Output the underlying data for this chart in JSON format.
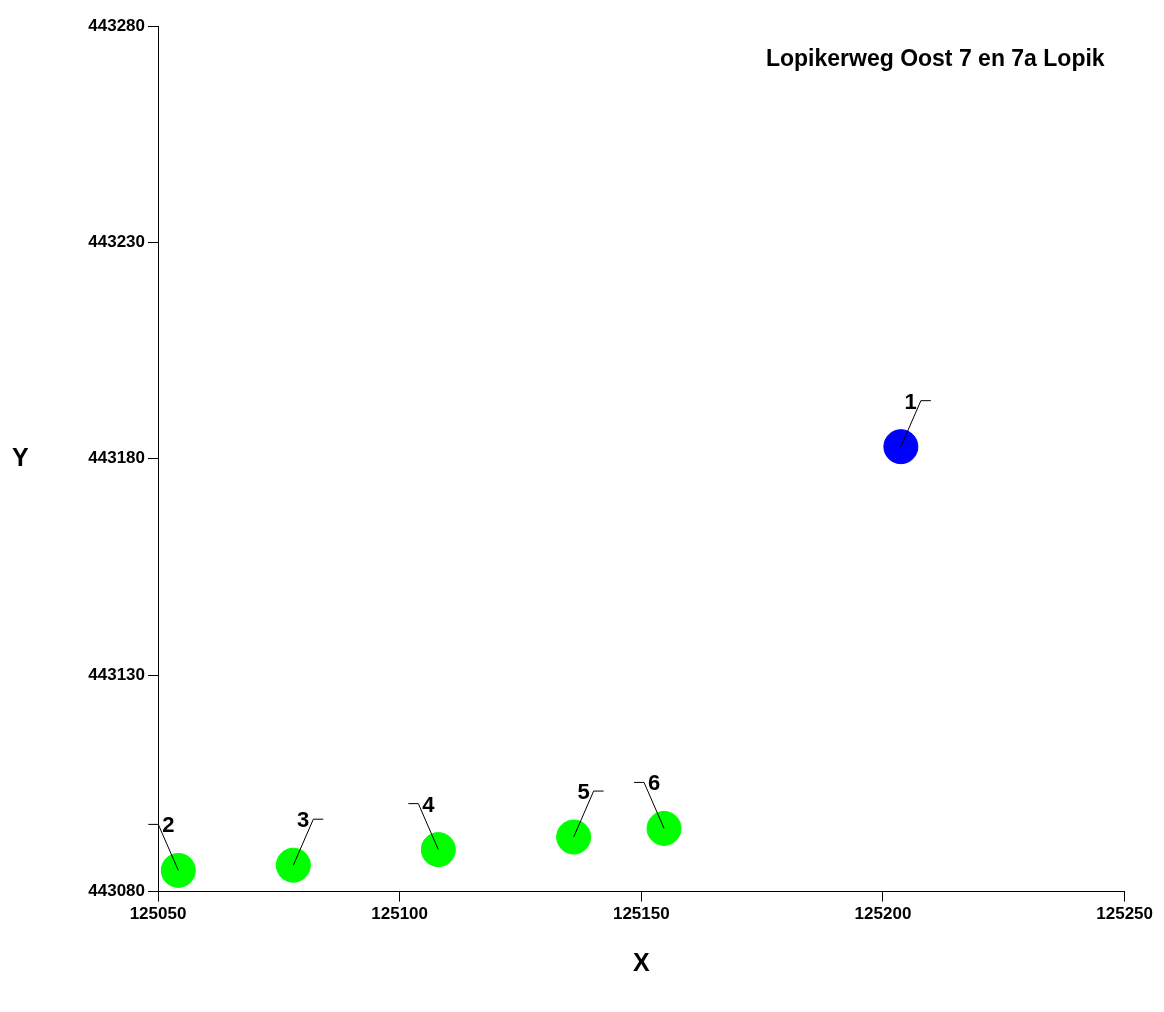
{
  "chart_data": {
    "type": "scatter",
    "title": "Lopikerweg Oost 7 en 7a Lopik",
    "xlabel": "X",
    "ylabel": "Y",
    "series": [
      {
        "color": "#0000ff",
        "x": [
          125203.7
        ],
        "values": [
          443182.8
        ]
      },
      {
        "color": "#00ff00",
        "x": [
          125054.2,
          125078,
          125108,
          125136,
          125154.7
        ],
        "values": [
          443084.9,
          443086.1,
          443089.7,
          443092.6,
          443094.6
        ]
      }
    ],
    "annotations": [
      {
        "text": "1",
        "x": 125203.7,
        "y": 443182.8
      },
      {
        "text": "2",
        "x": 125054.2,
        "y": 443084.9
      },
      {
        "text": "3",
        "x": 125078,
        "y": 443086.1
      },
      {
        "text": "4",
        "x": 125108,
        "y": 443089.7
      },
      {
        "text": "5",
        "x": 125136,
        "y": 443092.6
      },
      {
        "text": "6",
        "x": 125154.7,
        "y": 443094.6
      }
    ],
    "xlim": [
      125050,
      125250
    ],
    "xticks": [
      125050,
      125100,
      125150,
      125200,
      125250
    ],
    "ylim": [
      443080,
      443280
    ],
    "yticks": [
      443080,
      443130,
      443180,
      443230,
      443280
    ],
    "grid": false,
    "legend": false,
    "marker": "circle"
  }
}
